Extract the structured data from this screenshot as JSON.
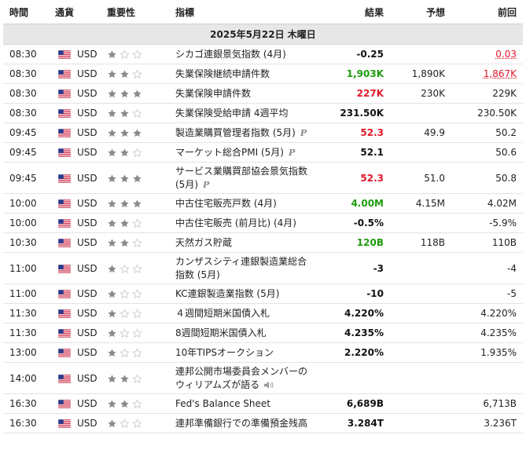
{
  "headers": {
    "time": "時間",
    "currency": "通貨",
    "importance": "重要性",
    "event": "指標",
    "actual": "結果",
    "forecast": "予想",
    "previous": "前回"
  },
  "date_label": "2025年5月22日 木曜日",
  "colors": {
    "green": "#1e9a0e",
    "red": "#e0182a",
    "star_filled": "#8a8a8a",
    "star_empty": "#c9c9c9"
  },
  "events": [
    {
      "time": "08:30",
      "currency": "USD",
      "stars": 1,
      "event": "シカゴ連銀景気指数 (4月)",
      "actual": "-0.25",
      "actual_color": "black",
      "forecast": "",
      "previous": "0.03",
      "previous_color": "red",
      "badge": ""
    },
    {
      "time": "08:30",
      "currency": "USD",
      "stars": 2,
      "event": "失業保険継続申請件数",
      "actual": "1,903K",
      "actual_color": "green",
      "forecast": "1,890K",
      "previous": "1,867K",
      "previous_color": "red",
      "badge": ""
    },
    {
      "time": "08:30",
      "currency": "USD",
      "stars": 3,
      "event": "失業保険申請件数",
      "actual": "227K",
      "actual_color": "red",
      "forecast": "230K",
      "previous": "229K",
      "previous_color": "black",
      "badge": ""
    },
    {
      "time": "08:30",
      "currency": "USD",
      "stars": 2,
      "event": "失業保険受給申請 4週平均",
      "actual": "231.50K",
      "actual_color": "black",
      "forecast": "",
      "previous": "230.50K",
      "previous_color": "black",
      "badge": ""
    },
    {
      "time": "09:45",
      "currency": "USD",
      "stars": 3,
      "event": "製造業購買管理者指数 (5月)",
      "actual": "52.3",
      "actual_color": "red",
      "forecast": "49.9",
      "previous": "50.2",
      "previous_color": "black",
      "badge": "P"
    },
    {
      "time": "09:45",
      "currency": "USD",
      "stars": 2,
      "event": "マーケット総合PMI (5月)",
      "actual": "52.1",
      "actual_color": "black",
      "forecast": "",
      "previous": "50.6",
      "previous_color": "black",
      "badge": "P"
    },
    {
      "time": "09:45",
      "currency": "USD",
      "stars": 3,
      "event": "サービス業購買部協会景気指数 (5月)",
      "actual": "52.3",
      "actual_color": "red",
      "forecast": "51.0",
      "previous": "50.8",
      "previous_color": "black",
      "badge": "P",
      "wrap": true
    },
    {
      "time": "10:00",
      "currency": "USD",
      "stars": 3,
      "event": "中古住宅販売戸数 (4月)",
      "actual": "4.00M",
      "actual_color": "green",
      "forecast": "4.15M",
      "previous": "4.02M",
      "previous_color": "black",
      "badge": ""
    },
    {
      "time": "10:00",
      "currency": "USD",
      "stars": 2,
      "event": "中古住宅販売 (前月比) (4月)",
      "actual": "-0.5%",
      "actual_color": "black",
      "forecast": "",
      "previous": "-5.9%",
      "previous_color": "black",
      "badge": ""
    },
    {
      "time": "10:30",
      "currency": "USD",
      "stars": 2,
      "event": "天然ガス貯蔵",
      "actual": "120B",
      "actual_color": "green",
      "forecast": "118B",
      "previous": "110B",
      "previous_color": "black",
      "badge": ""
    },
    {
      "time": "11:00",
      "currency": "USD",
      "stars": 1,
      "event": "カンザスシティ連銀製造業総合指数 (5月)",
      "actual": "-3",
      "actual_color": "black",
      "forecast": "",
      "previous": "-4",
      "previous_color": "black",
      "badge": "",
      "wrap": true
    },
    {
      "time": "11:00",
      "currency": "USD",
      "stars": 1,
      "event": "KC連銀製造業指数 (5月)",
      "actual": "-10",
      "actual_color": "black",
      "forecast": "",
      "previous": "-5",
      "previous_color": "black",
      "badge": ""
    },
    {
      "time": "11:30",
      "currency": "USD",
      "stars": 1,
      "event": "４週間短期米国債入札",
      "actual": "4.220%",
      "actual_color": "black",
      "forecast": "",
      "previous": "4.220%",
      "previous_color": "black",
      "badge": ""
    },
    {
      "time": "11:30",
      "currency": "USD",
      "stars": 1,
      "event": "8週間短期米国債入札",
      "actual": "4.235%",
      "actual_color": "black",
      "forecast": "",
      "previous": "4.235%",
      "previous_color": "black",
      "badge": ""
    },
    {
      "time": "13:00",
      "currency": "USD",
      "stars": 1,
      "event": "10年TIPSオークション",
      "actual": "2.220%",
      "actual_color": "black",
      "forecast": "",
      "previous": "1.935%",
      "previous_color": "black",
      "badge": ""
    },
    {
      "time": "14:00",
      "currency": "USD",
      "stars": 2,
      "event": "連邦公開市場委員会メンバーのウィリアムズが語る",
      "actual": "",
      "actual_color": "black",
      "forecast": "",
      "previous": "",
      "previous_color": "black",
      "badge": "speaker",
      "wrap": true
    },
    {
      "time": "16:30",
      "currency": "USD",
      "stars": 2,
      "event": "Fed's Balance Sheet",
      "actual": "6,689B",
      "actual_color": "black",
      "forecast": "",
      "previous": "6,713B",
      "previous_color": "black",
      "badge": ""
    },
    {
      "time": "16:30",
      "currency": "USD",
      "stars": 1,
      "event": "連邦準備銀行での準備預金残高",
      "actual": "3.284T",
      "actual_color": "black",
      "forecast": "",
      "previous": "3.236T",
      "previous_color": "black",
      "badge": ""
    }
  ]
}
